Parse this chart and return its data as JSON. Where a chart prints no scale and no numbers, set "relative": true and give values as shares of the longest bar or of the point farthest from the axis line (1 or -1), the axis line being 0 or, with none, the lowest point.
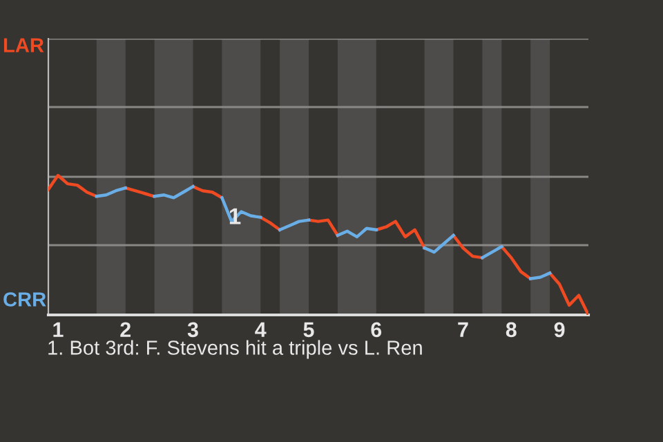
{
  "chart_data": {
    "type": "line",
    "relative": true,
    "categories": [
      null,
      "1",
      null,
      null,
      null,
      null,
      null,
      null,
      "2",
      null,
      null,
      null,
      null,
      null,
      null,
      "3",
      null,
      null,
      null,
      null,
      null,
      null,
      "4",
      null,
      null,
      null,
      null,
      "5",
      null,
      null,
      null,
      null,
      null,
      null,
      "6",
      null,
      null,
      null,
      null,
      null,
      null,
      null,
      null,
      "7",
      null,
      null,
      null,
      null,
      "8",
      null,
      null,
      null,
      null,
      "9",
      null,
      null,
      null
    ],
    "series": [
      {
        "color": "#f04a23",
        "values": [
          0.9,
          1,
          0.94,
          0.93,
          0.88,
          0.85,
          null,
          null,
          0.91,
          0.89,
          0.87,
          0.85,
          null,
          null,
          null,
          0.92,
          0.89,
          0.88,
          0.84,
          null,
          null,
          null,
          0.7,
          0.66,
          0.61,
          null,
          null,
          0.68,
          0.67,
          0.68,
          0.57,
          null,
          null,
          null,
          0.61,
          0.63,
          0.67,
          0.56,
          0.61,
          0.48,
          null,
          null,
          0.57,
          0.48,
          0.42,
          0.41,
          null,
          0.49,
          0.41,
          0.31,
          0.26,
          null,
          0.3,
          0.22,
          0.07,
          0.14,
          0
        ]
      },
      {
        "color": "#6aaee8",
        "values": [
          null,
          null,
          null,
          null,
          null,
          0.85,
          0.86,
          0.89,
          0.91,
          null,
          null,
          0.85,
          0.86,
          0.84,
          0.88,
          0.92,
          null,
          null,
          0.84,
          0.67,
          0.74,
          0.71,
          0.7,
          null,
          0.61,
          0.64,
          0.67,
          0.68,
          null,
          null,
          0.57,
          0.6,
          0.56,
          0.62,
          0.61,
          null,
          null,
          null,
          null,
          0.48,
          0.45,
          0.51,
          0.57,
          null,
          null,
          0.41,
          0.45,
          0.49,
          null,
          null,
          0.26,
          0.27,
          0.3,
          null,
          null,
          null,
          null
        ]
      }
    ],
    "ref_lines": [
      {
        "axis": "y",
        "value": 0.5,
        "color": "#8a8886"
      },
      {
        "axis": "y",
        "value": 0.99,
        "color": "#8a8886"
      },
      {
        "axis": "y",
        "value": 1.49,
        "color": "#8a8886"
      },
      {
        "axis": "y",
        "value": 1.98,
        "color": "#8a8886"
      }
    ],
    "annotations": [
      "1",
      "1. Bot 3rd: F. Stevens hit a triple vs L. Ren",
      "LAR",
      "CRR"
    ],
    "marker": "none",
    "line_style": "solid"
  }
}
